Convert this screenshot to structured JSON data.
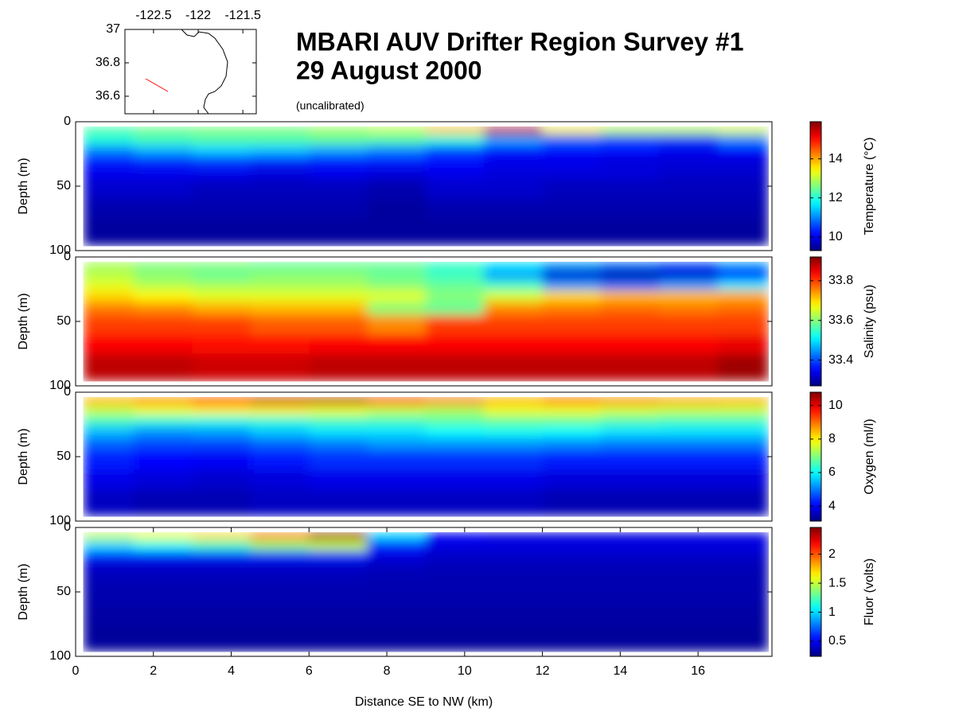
{
  "title": "MBARI AUV Drifter Region Survey #1",
  "subtitle": "29 August 2000",
  "note": "(uncalibrated)",
  "chart_data": [
    {
      "type": "heatmap",
      "colormap": "jet",
      "ylabel": "Depth (m)",
      "colorbar_label": "Temperature (°C)",
      "xlim": [
        0,
        17.9
      ],
      "ylim": [
        100,
        0
      ],
      "yticks": [
        0,
        50,
        100
      ],
      "x_edges": [
        0.2,
        1.5,
        3,
        4.5,
        6,
        7.5,
        9,
        10.5,
        12,
        13.5,
        15,
        16.5,
        17.8
      ],
      "y_edges": [
        4,
        10,
        18,
        26,
        35,
        45,
        60,
        75,
        96
      ],
      "clim": [
        9.3,
        15.9
      ],
      "cticks": [
        10,
        12,
        14
      ],
      "values": [
        [
          12.3,
          12.5,
          12.6,
          12.6,
          12.8,
          13,
          13.8,
          15.5,
          13.5,
          13,
          13,
          13.2
        ],
        [
          12,
          12.2,
          12.3,
          12.3,
          12.4,
          12.3,
          12,
          11.2,
          10.8,
          10.6,
          10.5,
          11
        ],
        [
          11,
          11.3,
          11.5,
          11.4,
          11.2,
          11,
          10.6,
          10.3,
          10.2,
          10.2,
          10,
          10.2
        ],
        [
          10.3,
          10.4,
          10.5,
          10.4,
          10.3,
          10.3,
          10.2,
          10,
          10,
          9.9,
          9.9,
          9.9
        ],
        [
          10,
          10,
          10,
          9.9,
          10,
          9.9,
          10,
          9.9,
          9.9,
          9.9,
          9.8,
          9.8
        ],
        [
          9.8,
          9.8,
          9.7,
          9.7,
          9.7,
          9.6,
          9.8,
          9.8,
          9.7,
          9.7,
          9.7,
          9.7
        ],
        [
          9.6,
          9.6,
          9.6,
          9.6,
          9.6,
          9.5,
          9.6,
          9.6,
          9.6,
          9.6,
          9.6,
          9.6
        ],
        [
          9.5,
          9.5,
          9.5,
          9.5,
          9.5,
          9.5,
          9.5,
          9.5,
          9.5,
          9.5,
          9.5,
          9.5
        ]
      ]
    },
    {
      "type": "heatmap",
      "colormap": "jet",
      "ylabel": "Depth (m)",
      "colorbar_label": "Salinity (psu)",
      "xlim": [
        0,
        17.9
      ],
      "ylim": [
        100,
        0
      ],
      "yticks": [
        0,
        50,
        100
      ],
      "x_edges": [
        0.2,
        1.5,
        3,
        4.5,
        6,
        7.5,
        9,
        10.5,
        12,
        13.5,
        15,
        16.5,
        17.8
      ],
      "y_edges": [
        4,
        10,
        18,
        26,
        35,
        45,
        60,
        75,
        96
      ],
      "clim": [
        33.27,
        33.92
      ],
      "cticks": [
        33.4,
        33.6,
        33.8
      ],
      "values": [
        [
          33.62,
          33.6,
          33.6,
          33.58,
          33.58,
          33.58,
          33.55,
          33.5,
          33.45,
          33.42,
          33.4,
          33.45
        ],
        [
          33.63,
          33.6,
          33.58,
          33.6,
          33.6,
          33.58,
          33.55,
          33.45,
          33.32,
          33.3,
          33.32,
          33.35
        ],
        [
          33.66,
          33.63,
          33.62,
          33.62,
          33.62,
          33.6,
          33.58,
          33.55,
          33.45,
          33.42,
          33.45,
          33.5
        ],
        [
          33.7,
          33.68,
          33.66,
          33.66,
          33.66,
          33.66,
          33.6,
          33.65,
          33.7,
          33.72,
          33.72,
          33.73
        ],
        [
          33.76,
          33.75,
          33.73,
          33.72,
          33.72,
          33.6,
          33.58,
          33.75,
          33.76,
          33.77,
          33.76,
          33.77
        ],
        [
          33.8,
          33.8,
          33.8,
          33.78,
          33.78,
          33.75,
          33.8,
          33.8,
          33.8,
          33.8,
          33.8,
          33.8
        ],
        [
          33.84,
          33.84,
          33.83,
          33.83,
          33.84,
          33.84,
          33.84,
          33.84,
          33.84,
          33.84,
          33.84,
          33.85
        ],
        [
          33.88,
          33.88,
          33.87,
          33.87,
          33.88,
          33.88,
          33.88,
          33.88,
          33.88,
          33.88,
          33.88,
          33.9
        ]
      ]
    },
    {
      "type": "heatmap",
      "colormap": "jet",
      "ylabel": "Depth (m)",
      "colorbar_label": "Oxygen (ml/l)",
      "xlim": [
        0,
        17.9
      ],
      "ylim": [
        100,
        0
      ],
      "yticks": [
        0,
        50,
        100
      ],
      "x_edges": [
        0.2,
        1.5,
        3,
        4.5,
        6,
        7.5,
        9,
        10.5,
        12,
        13.5,
        15,
        16.5,
        17.8
      ],
      "y_edges": [
        4,
        10,
        18,
        26,
        35,
        45,
        60,
        75,
        96
      ],
      "clim": [
        3.1,
        10.8
      ],
      "cticks": [
        4,
        6,
        8,
        10
      ],
      "values": [
        [
          8.5,
          8.8,
          9.5,
          10.3,
          10.4,
          9.5,
          9,
          8.5,
          9,
          8.8,
          8.6,
          8.5
        ],
        [
          7.5,
          7.8,
          8,
          8,
          7.8,
          7.5,
          7.3,
          7.8,
          7.8,
          7.6,
          7.5,
          7.5
        ],
        [
          6.5,
          6.3,
          6.2,
          6.3,
          6.5,
          6.5,
          6.7,
          6.8,
          6.8,
          6.6,
          6.5,
          6.5
        ],
        [
          5.5,
          5.2,
          5.3,
          5.6,
          5.8,
          5.8,
          6,
          6.1,
          6,
          5.8,
          5.8,
          5.8
        ],
        [
          4.8,
          4.6,
          4.6,
          4.8,
          5,
          5.2,
          5.2,
          5.2,
          5.1,
          5,
          5,
          5
        ],
        [
          4.3,
          4.1,
          4,
          4.2,
          4.4,
          4.4,
          4.4,
          4.4,
          4.3,
          4.3,
          4.3,
          4.3
        ],
        [
          3.9,
          3.8,
          3.7,
          3.8,
          3.9,
          3.9,
          3.9,
          3.9,
          3.8,
          3.8,
          3.8,
          3.8
        ],
        [
          3.6,
          3.5,
          3.5,
          3.6,
          3.6,
          3.6,
          3.6,
          3.6,
          3.5,
          3.5,
          3.5,
          3.5
        ]
      ]
    },
    {
      "type": "heatmap",
      "colormap": "jet",
      "ylabel": "Depth (m)",
      "colorbar_label": "Fluor (volts)",
      "xlabel": "Distance SE to NW (km)",
      "xlim": [
        0,
        17.9
      ],
      "xticks": [
        0,
        2,
        4,
        6,
        8,
        10,
        12,
        14,
        16
      ],
      "ylim": [
        100,
        0
      ],
      "yticks": [
        0,
        50,
        100
      ],
      "x_edges": [
        0.2,
        1.5,
        3,
        4.5,
        6,
        7.5,
        9,
        10.5,
        12,
        13.5,
        15,
        16.5,
        17.8
      ],
      "y_edges": [
        4,
        10,
        18,
        26,
        35,
        45,
        60,
        75,
        96
      ],
      "clim": [
        0.24,
        2.46
      ],
      "cticks": [
        0.5,
        1,
        1.5,
        2
      ],
      "values": [
        [
          1.5,
          1.6,
          1.7,
          1.9,
          2.4,
          1,
          0.5,
          0.45,
          0.45,
          0.45,
          0.45,
          0.45
        ],
        [
          1,
          1.1,
          1.2,
          1.4,
          1.5,
          0.6,
          0.45,
          0.45,
          0.45,
          0.45,
          0.45,
          0.45
        ],
        [
          0.6,
          0.6,
          0.6,
          0.6,
          0.6,
          0.45,
          0.4,
          0.4,
          0.4,
          0.4,
          0.4,
          0.4
        ],
        [
          0.4,
          0.4,
          0.4,
          0.4,
          0.4,
          0.38,
          0.36,
          0.36,
          0.36,
          0.36,
          0.36,
          0.36
        ],
        [
          0.36,
          0.36,
          0.36,
          0.36,
          0.36,
          0.35,
          0.35,
          0.35,
          0.35,
          0.35,
          0.35,
          0.35
        ],
        [
          0.34,
          0.34,
          0.34,
          0.34,
          0.34,
          0.34,
          0.34,
          0.34,
          0.34,
          0.34,
          0.34,
          0.34
        ],
        [
          0.32,
          0.32,
          0.32,
          0.32,
          0.32,
          0.32,
          0.32,
          0.32,
          0.32,
          0.32,
          0.32,
          0.32
        ],
        [
          0.3,
          0.3,
          0.3,
          0.3,
          0.3,
          0.3,
          0.3,
          0.3,
          0.3,
          0.3,
          0.3,
          0.3
        ]
      ]
    },
    {
      "type": "map",
      "xlim": [
        -122.82,
        -121.35
      ],
      "ylim": [
        36.495,
        37
      ],
      "xticks": [
        -122.5,
        -122,
        -121.5
      ],
      "yticks": [
        37,
        36.8,
        36.6
      ]
    }
  ]
}
